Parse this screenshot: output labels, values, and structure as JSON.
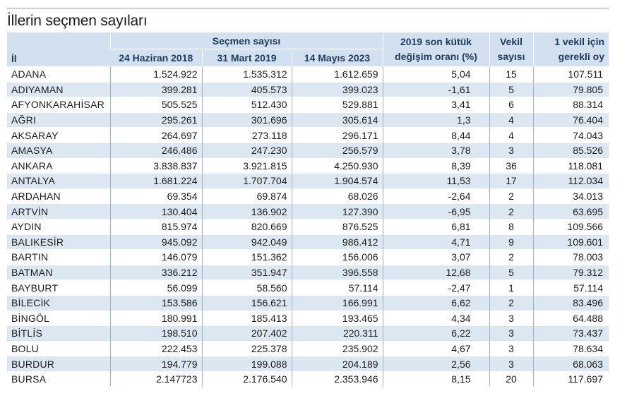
{
  "title": "İllerin seçmen sayıları",
  "headers": {
    "il": "İl",
    "secmen_sayisi": "Seçmen sayısı",
    "d2018": "24 Haziran 2018",
    "d2019": "31 Mart 2019",
    "d2023": "14 Mayıs 2023",
    "degisim_1": "2019 son kütük",
    "degisim_2": "değişim oranı (%)",
    "vekil_1": "Vekil",
    "vekil_2": "sayısı",
    "oy_1": "1 vekil  için",
    "oy_2": "gerekli oy"
  },
  "rows": [
    {
      "il": "ADANA",
      "v2018": "1.524.922",
      "v2019": "1.535.312",
      "v2023": "1.612.659",
      "degisim": "5,04",
      "vekil": "15",
      "oy": "107.511"
    },
    {
      "il": "ADIYAMAN",
      "v2018": "399.281",
      "v2019": "405.573",
      "v2023": "399.023",
      "degisim": "-1,61",
      "vekil": "5",
      "oy": "79.805"
    },
    {
      "il": "AFYONKARAHİSAR",
      "v2018": "505.525",
      "v2019": "512.430",
      "v2023": "529.881",
      "degisim": "3,41",
      "vekil": "6",
      "oy": "88.314"
    },
    {
      "il": "AĞRI",
      "v2018": "295.261",
      "v2019": "301.696",
      "v2023": "305.614",
      "degisim": "1,3",
      "vekil": "4",
      "oy": "76.404"
    },
    {
      "il": "AKSARAY",
      "v2018": "264.697",
      "v2019": "273.118",
      "v2023": "296.171",
      "degisim": "8,44",
      "vekil": "4",
      "oy": "74.043"
    },
    {
      "il": "AMASYA",
      "v2018": "246.486",
      "v2019": "247.230",
      "v2023": "256.579",
      "degisim": "3,78",
      "vekil": "3",
      "oy": "85.526"
    },
    {
      "il": "ANKARA",
      "v2018": "3.838.837",
      "v2019": "3.921.815",
      "v2023": "4.250.930",
      "degisim": "8,39",
      "vekil": "36",
      "oy": "118.081"
    },
    {
      "il": "ANTALYA",
      "v2018": "1.681.224",
      "v2019": "1.707.704",
      "v2023": "1.904.574",
      "degisim": "11,53",
      "vekil": "17",
      "oy": "112.034"
    },
    {
      "il": "ARDAHAN",
      "v2018": "69.354",
      "v2019": "69.874",
      "v2023": "68.026",
      "degisim": "-2,64",
      "vekil": "2",
      "oy": "34.013"
    },
    {
      "il": "ARTVİN",
      "v2018": "130.404",
      "v2019": "136.902",
      "v2023": "127.390",
      "degisim": "-6,95",
      "vekil": "2",
      "oy": "63.695"
    },
    {
      "il": "AYDIN",
      "v2018": "815.974",
      "v2019": "820.669",
      "v2023": "876.525",
      "degisim": "6,81",
      "vekil": "8",
      "oy": "109.566"
    },
    {
      "il": "BALIKESİR",
      "v2018": "945.092",
      "v2019": "942.049",
      "v2023": "986.412",
      "degisim": "4,71",
      "vekil": "9",
      "oy": "109.601"
    },
    {
      "il": "BARTIN",
      "v2018": "146.079",
      "v2019": "151.362",
      "v2023": "156.006",
      "degisim": "3,07",
      "vekil": "2",
      "oy": "78.003"
    },
    {
      "il": "BATMAN",
      "v2018": "336.212",
      "v2019": "351.947",
      "v2023": "396.558",
      "degisim": "12,68",
      "vekil": "5",
      "oy": "79.312"
    },
    {
      "il": "BAYBURT",
      "v2018": "56.099",
      "v2019": "58.560",
      "v2023": "57.114",
      "degisim": "-2,47",
      "vekil": "1",
      "oy": "57.114"
    },
    {
      "il": "BİLECİK",
      "v2018": "153.586",
      "v2019": "156.621",
      "v2023": "166.991",
      "degisim": "6,62",
      "vekil": "2",
      "oy": "83.496"
    },
    {
      "il": "BİNGÖL",
      "v2018": "180.991",
      "v2019": "185.413",
      "v2023": "193.465",
      "degisim": "4,34",
      "vekil": "3",
      "oy": "64.488"
    },
    {
      "il": "BİTLİS",
      "v2018": "198.510",
      "v2019": "207.402",
      "v2023": "220.311",
      "degisim": "6,22",
      "vekil": "3",
      "oy": "73.437"
    },
    {
      "il": "BOLU",
      "v2018": "222.453",
      "v2019": "225.378",
      "v2023": "235.902",
      "degisim": "4,67",
      "vekil": "3",
      "oy": "78.634"
    },
    {
      "il": "BURDUR",
      "v2018": "194.779",
      "v2019": "199.088",
      "v2023": "204.189",
      "degisim": "2,56",
      "vekil": "3",
      "oy": "68.063"
    },
    {
      "il": "BURSA",
      "v2018": "2.147723",
      "v2019": "2.176.540",
      "v2023": "2.353.946",
      "degisim": "8,15",
      "vekil": "20",
      "oy": "117.697"
    }
  ]
}
